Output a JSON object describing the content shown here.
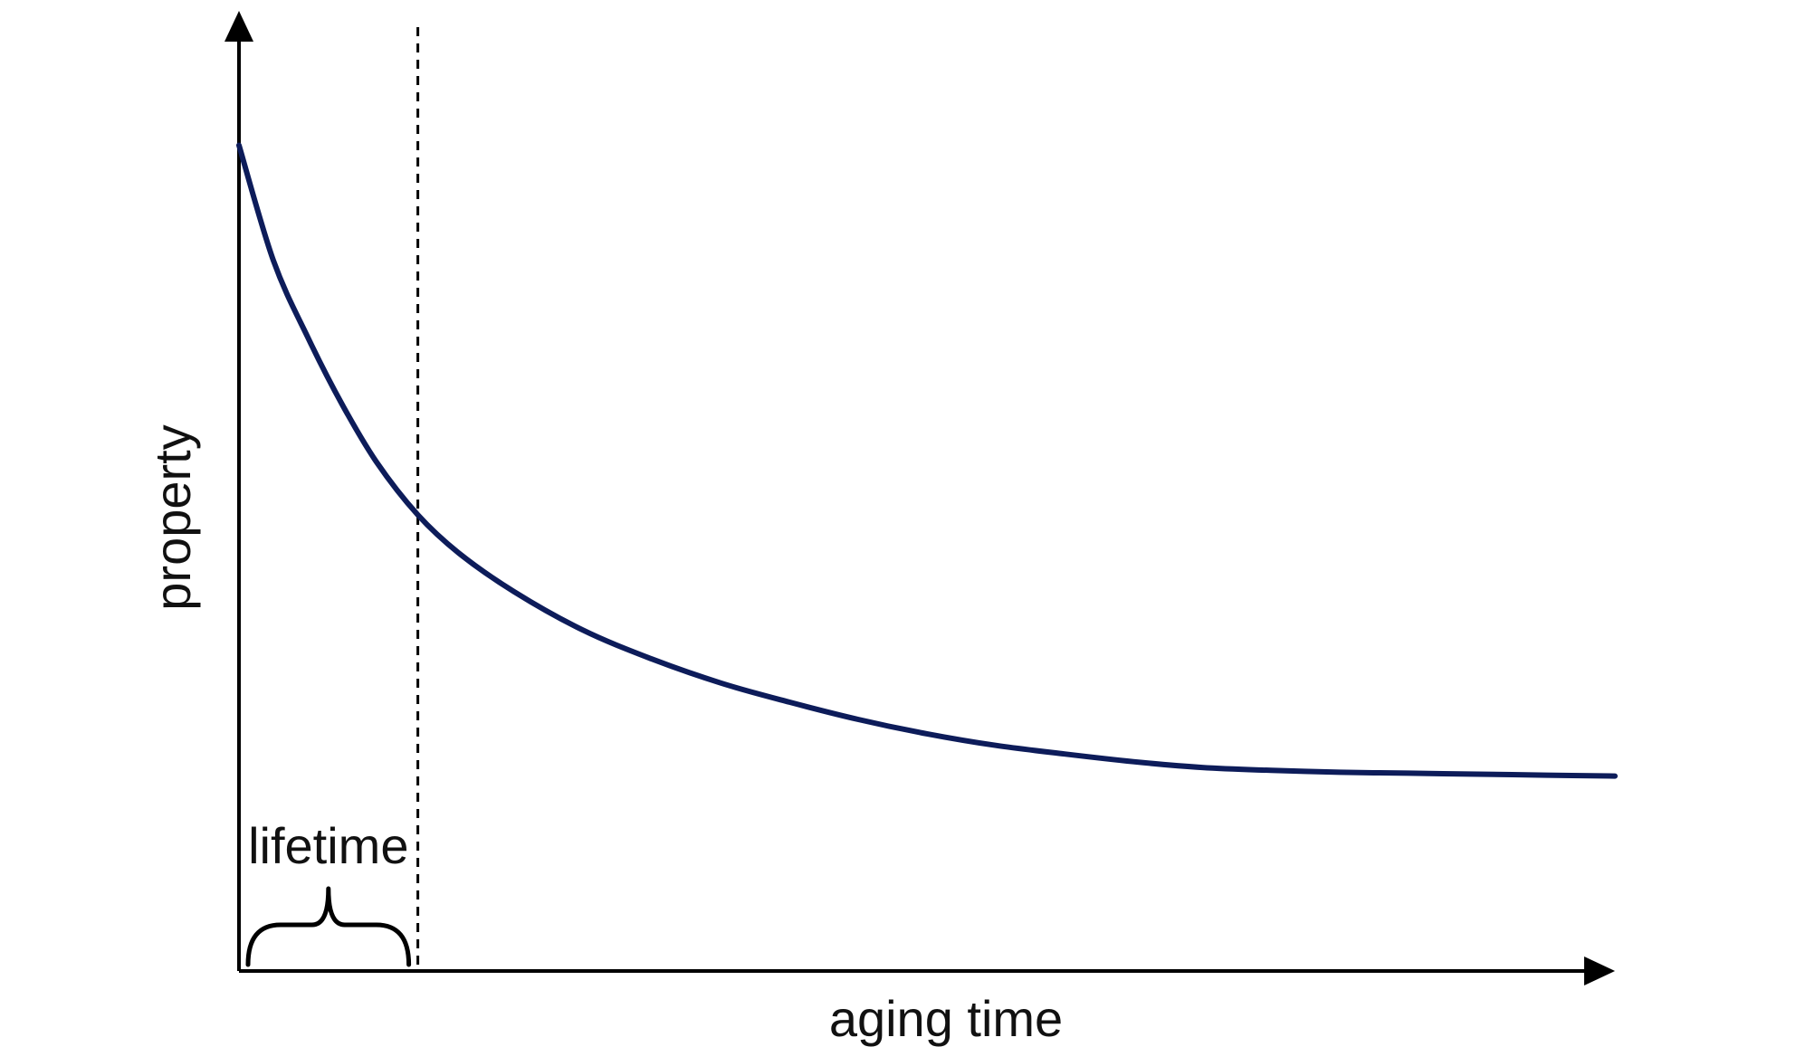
{
  "chart_data": {
    "type": "line",
    "title": "",
    "xlabel": "aging time",
    "ylabel": "property",
    "grid": false,
    "legend": "none",
    "xlim": [
      0,
      10
    ],
    "ylim": [
      0,
      10
    ],
    "series": [
      {
        "x": [
          0,
          0.25,
          0.5,
          0.75,
          1.0,
          1.3,
          1.6,
          2.0,
          2.5,
          3.0,
          3.5,
          4.0,
          4.5,
          5.0,
          5.5,
          6.0,
          6.5,
          7.0,
          7.5,
          8.0,
          8.5,
          9.0,
          9.5,
          10.0
        ],
        "y": [
          8.6,
          7.4,
          6.6,
          5.9,
          5.3,
          4.75,
          4.35,
          3.95,
          3.55,
          3.25,
          3.0,
          2.8,
          2.62,
          2.47,
          2.35,
          2.26,
          2.18,
          2.12,
          2.09,
          2.07,
          2.06,
          2.05,
          2.04,
          2.03
        ],
        "color": "#0d1c5a"
      }
    ],
    "marker": {
      "x": 1.3
    },
    "annotations": [
      {
        "text": "lifetime",
        "x_range": [
          0,
          1.3
        ]
      }
    ]
  }
}
